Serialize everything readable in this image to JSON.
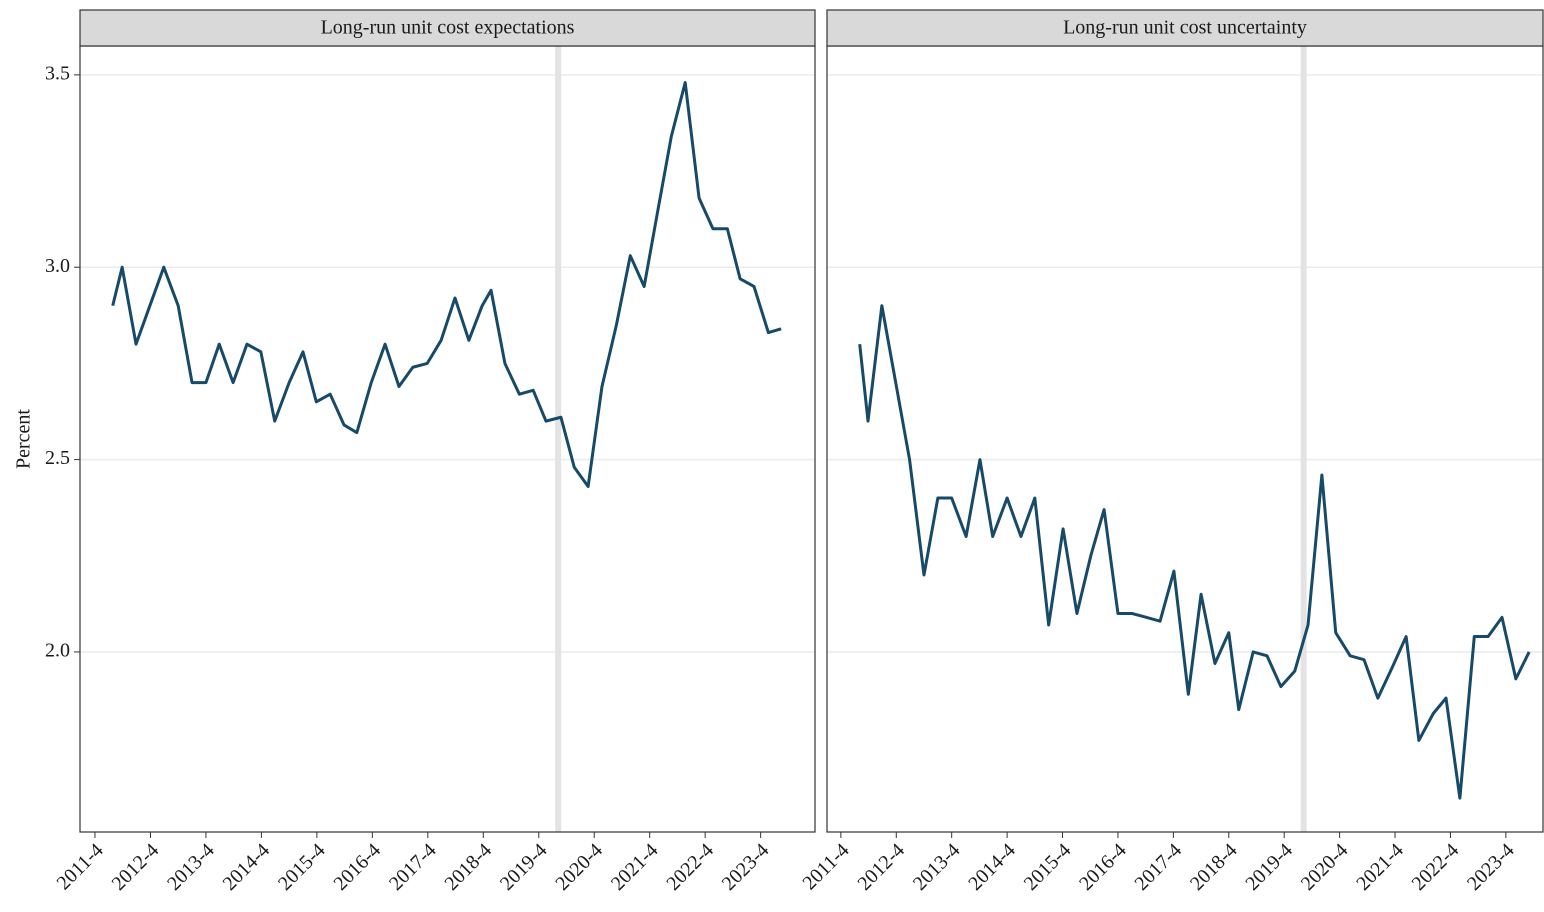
{
  "chart_data": [
    {
      "type": "line",
      "title": "Long-run unit cost expectations",
      "ylabel": "Percent",
      "color": "#174a68",
      "grid": true,
      "band_color": "#e3e3e3",
      "vlines": [
        2020.1
      ],
      "xlim": [
        2011.48,
        2024.73
      ],
      "ylim": [
        1.532,
        3.575
      ],
      "xticks": [
        {
          "value": 2011.75,
          "label": "2011-4"
        },
        {
          "value": 2012.75,
          "label": "2012-4"
        },
        {
          "value": 2013.75,
          "label": "2013-4"
        },
        {
          "value": 2014.75,
          "label": "2014-4"
        },
        {
          "value": 2015.75,
          "label": "2015-4"
        },
        {
          "value": 2016.75,
          "label": "2016-4"
        },
        {
          "value": 2017.75,
          "label": "2017-4"
        },
        {
          "value": 2018.75,
          "label": "2018-4"
        },
        {
          "value": 2019.75,
          "label": "2019-4"
        },
        {
          "value": 2020.75,
          "label": "2020-4"
        },
        {
          "value": 2021.75,
          "label": "2021-4"
        },
        {
          "value": 2022.75,
          "label": "2022-4"
        },
        {
          "value": 2023.75,
          "label": "2023-4"
        }
      ],
      "yticks": [
        {
          "value": 2,
          "label": "2.0"
        },
        2.5,
        {
          "value": 3,
          "label": "3.0"
        },
        3.5
      ],
      "x": [
        2012.07,
        2012.24,
        2012.49,
        2012.74,
        2012.99,
        2013.25,
        2013.5,
        2013.75,
        2013.99,
        2014.24,
        2014.49,
        2014.74,
        2014.99,
        2015.25,
        2015.5,
        2015.74,
        2015.99,
        2016.24,
        2016.47,
        2016.73,
        2016.98,
        2017.23,
        2017.48,
        2017.74,
        2017.99,
        2018.24,
        2018.49,
        2018.73,
        2018.89,
        2019.14,
        2019.4,
        2019.65,
        2019.88,
        2020.15,
        2020.39,
        2020.64,
        2020.89,
        2021.15,
        2021.4,
        2021.65,
        2021.9,
        2022.14,
        2022.39,
        2022.64,
        2022.89,
        2023.15,
        2023.38,
        2023.63,
        2023.89,
        2024.12
      ],
      "values": [
        2.9,
        3.0,
        2.8,
        2.9,
        3.0,
        2.9,
        2.7,
        2.7,
        2.8,
        2.7,
        2.8,
        2.78,
        2.6,
        2.7,
        2.78,
        2.65,
        2.67,
        2.59,
        2.57,
        2.7,
        2.8,
        2.69,
        2.74,
        2.75,
        2.81,
        2.92,
        2.81,
        2.9,
        2.94,
        2.75,
        2.67,
        2.68,
        2.6,
        2.61,
        2.48,
        2.43,
        2.69,
        2.85,
        3.03,
        2.95,
        3.15,
        3.34,
        3.48,
        3.18,
        3.1,
        3.1,
        2.97,
        2.95,
        2.83,
        2.84
      ]
    },
    {
      "type": "line",
      "title": "Long-run unit cost uncertainty",
      "color": "#174a68",
      "grid": true,
      "band_color": "#e3e3e3",
      "vlines": [
        2020.1
      ],
      "xlim": [
        2011.5,
        2024.42
      ],
      "ylim": [
        1.532,
        3.575
      ],
      "xticks": [
        {
          "value": 2011.75,
          "label": "2011-4"
        },
        {
          "value": 2012.75,
          "label": "2012-4"
        },
        {
          "value": 2013.75,
          "label": "2013-4"
        },
        {
          "value": 2014.75,
          "label": "2014-4"
        },
        {
          "value": 2015.75,
          "label": "2015-4"
        },
        {
          "value": 2016.75,
          "label": "2016-4"
        },
        {
          "value": 2017.75,
          "label": "2017-4"
        },
        {
          "value": 2018.75,
          "label": "2018-4"
        },
        {
          "value": 2019.75,
          "label": "2019-4"
        },
        {
          "value": 2020.75,
          "label": "2020-4"
        },
        {
          "value": 2021.75,
          "label": "2021-4"
        },
        {
          "value": 2022.75,
          "label": "2022-4"
        },
        {
          "value": 2023.75,
          "label": "2023-4"
        }
      ],
      "yticks": [
        {
          "value": 2,
          "label": "2.0"
        },
        2.5,
        {
          "value": 3,
          "label": "3.0"
        },
        3.5
      ],
      "x": [
        2012.09,
        2012.24,
        2012.49,
        2012.74,
        2012.99,
        2013.25,
        2013.5,
        2013.75,
        2014.01,
        2014.26,
        2014.49,
        2014.75,
        2015.0,
        2015.25,
        2015.5,
        2015.76,
        2016.01,
        2016.26,
        2016.5,
        2016.75,
        2017.0,
        2017.26,
        2017.51,
        2017.76,
        2018.02,
        2018.25,
        2018.5,
        2018.75,
        2018.93,
        2019.19,
        2019.44,
        2019.69,
        2019.94,
        2020.18,
        2020.43,
        2020.68,
        2020.94,
        2021.19,
        2021.44,
        2021.7,
        2021.95,
        2022.18,
        2022.44,
        2022.67,
        2022.92,
        2023.18,
        2023.43,
        2023.68,
        2023.93,
        2024.17
      ],
      "values": [
        2.8,
        2.6,
        2.9,
        2.7,
        2.5,
        2.2,
        2.4,
        2.4,
        2.3,
        2.5,
        2.3,
        2.4,
        2.3,
        2.4,
        2.07,
        2.32,
        2.1,
        2.25,
        2.37,
        2.1,
        2.1,
        2.09,
        2.08,
        2.21,
        1.89,
        2.15,
        1.97,
        2.05,
        1.85,
        2.0,
        1.99,
        1.91,
        1.95,
        2.07,
        2.46,
        2.05,
        1.99,
        1.98,
        1.88,
        1.96,
        2.04,
        1.77,
        1.84,
        1.88,
        1.62,
        2.04,
        2.04,
        2.09,
        1.93,
        2.0
      ]
    }
  ]
}
